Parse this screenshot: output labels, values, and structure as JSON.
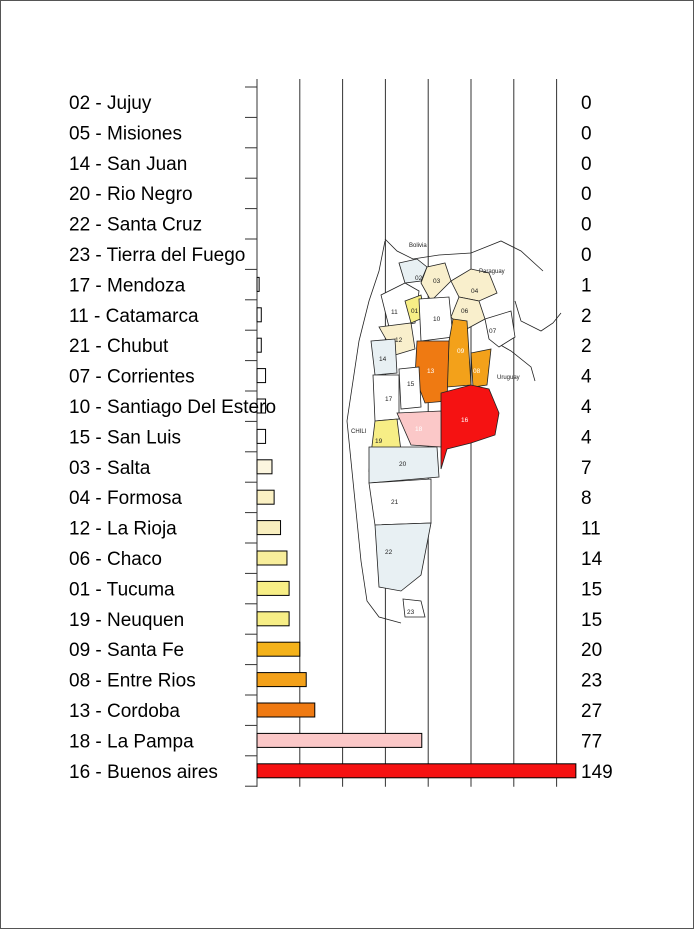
{
  "chart_data": {
    "type": "bar",
    "orientation": "horizontal",
    "title": "",
    "xlabel": "",
    "ylabel": "",
    "xlim": [
      0,
      150
    ],
    "grid": true,
    "categories": [
      "02 - Jujuy",
      "05 - Misiones",
      "14 - San Juan",
      "20 - Rio Negro",
      "22 - Santa Cruz",
      "23 - Tierra del Fuego",
      "17 - Mendoza",
      "11 - Catamarca",
      "21 - Chubut",
      "07 - Corrientes",
      "10 - Santiago Del Estero",
      "15 - San Luis",
      "03 - Salta",
      "04 - Formosa",
      "12 - La Rioja",
      "06 - Chaco",
      "01 - Tucuma",
      "19 - Neuquen",
      "09 - Santa Fe",
      "08 - Entre Rios",
      "13 - Cordoba",
      "18 - La Pampa",
      "16 - Buenos aires"
    ],
    "values": [
      0,
      0,
      0,
      0,
      0,
      0,
      1,
      2,
      2,
      4,
      4,
      4,
      7,
      8,
      11,
      14,
      15,
      15,
      20,
      23,
      27,
      77,
      149
    ],
    "value_labels": [
      "0",
      "0",
      "0",
      "0",
      "0",
      "0",
      "1",
      "2",
      "2",
      "4",
      "4",
      "4",
      "7",
      "8",
      "11",
      "14",
      "15",
      "15",
      "20",
      "23",
      "27",
      "77",
      "149"
    ],
    "colors": [
      "#ffffff",
      "#ffffff",
      "#ffffff",
      "#ffffff",
      "#ffffff",
      "#ffffff",
      "#ffffff",
      "#ffffff",
      "#ffffff",
      "#ffffff",
      "#ffffff",
      "#ffffff",
      "#fcf6df",
      "#fbf1c4",
      "#f9efbf",
      "#f8ee9b",
      "#f7ee86",
      "#f7ee86",
      "#f4b21a",
      "#f3a11a",
      "#ef7a12",
      "#fbc8c8",
      "#f51212"
    ]
  },
  "map": {
    "country_labels": [
      "Bolivia",
      "Paraguay",
      "Uruguay",
      "CHILI"
    ],
    "province_labels": [
      "02",
      "03",
      "04",
      "11",
      "01",
      "06",
      "10",
      "07",
      "12",
      "09",
      "14",
      "13",
      "08",
      "15",
      "17",
      "16",
      "18",
      "19",
      "20",
      "21",
      "22",
      "23"
    ],
    "colors": {
      "border": "#222222",
      "pale": "#f9efcc",
      "light_yellow": "#f7ee86",
      "orange": "#f3a11a",
      "dark_orange": "#ef7a12",
      "red": "#f51212",
      "pink": "#fbc8c8",
      "white_blue": "#e8f0f3",
      "white": "#ffffff"
    }
  }
}
